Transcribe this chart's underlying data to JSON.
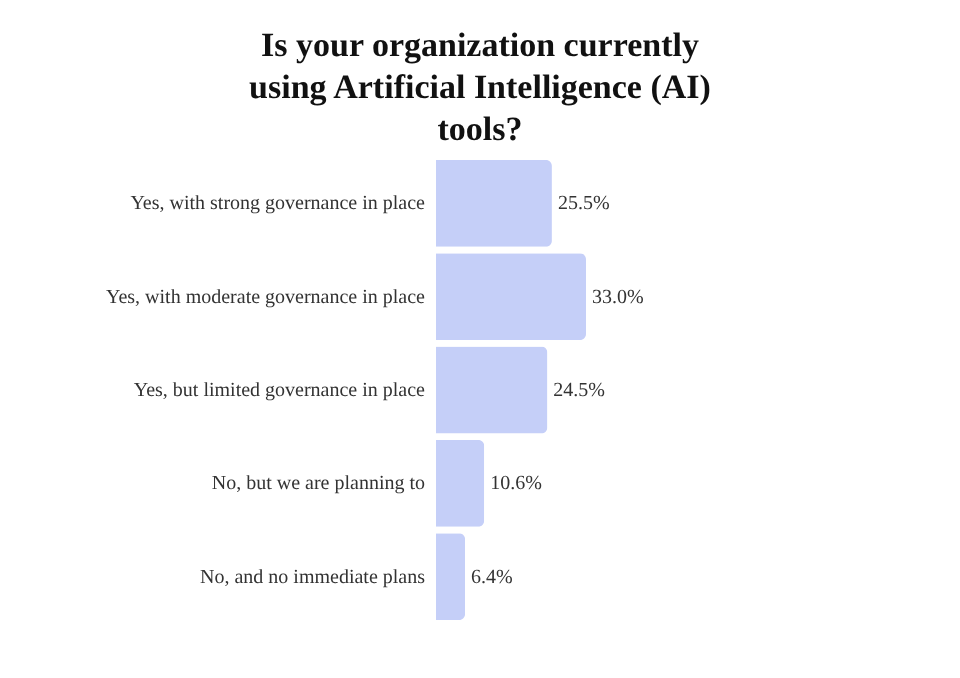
{
  "chart_data": {
    "type": "bar",
    "orientation": "horizontal",
    "title": "Is your organization currently using Artificial Intelligence (AI) tools?",
    "categories": [
      "Yes, with strong governance in place",
      "Yes, with moderate governance in place",
      "Yes, but limited governance in place",
      "No, but we are planning to",
      "No, and no immediate plans"
    ],
    "values": [
      25.5,
      33.0,
      24.5,
      10.6,
      6.4
    ],
    "value_labels": [
      "25.5%",
      "33.0%",
      "24.5%",
      "10.6%",
      "6.4%"
    ],
    "color": "#c5cff8"
  }
}
